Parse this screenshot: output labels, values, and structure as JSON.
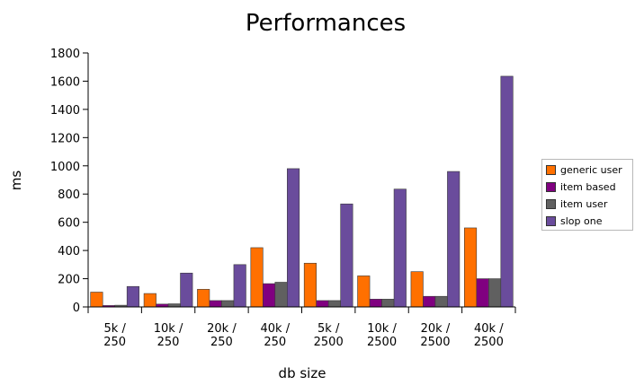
{
  "chart_data": {
    "type": "bar",
    "title": "Performances",
    "xlabel": "db size",
    "ylabel": "ms",
    "ylim": [
      0,
      1800
    ],
    "yticks": [
      0,
      200,
      400,
      600,
      800,
      1000,
      1200,
      1400,
      1600,
      1800
    ],
    "grid": false,
    "legend_position": "right",
    "categories": [
      [
        "5k /",
        "250"
      ],
      [
        "10k /",
        "250"
      ],
      [
        "20k /",
        "250"
      ],
      [
        "40k /",
        "250"
      ],
      [
        "5k /",
        "2500"
      ],
      [
        "10k /",
        "2500"
      ],
      [
        "20k /",
        "2500"
      ],
      [
        "40k /",
        "2500"
      ]
    ],
    "series": [
      {
        "name": "generic user",
        "color": "#ff7000",
        "values": [
          105,
          95,
          125,
          420,
          310,
          220,
          250,
          560
        ]
      },
      {
        "name": "item based",
        "color": "#800080",
        "values": [
          10,
          20,
          45,
          165,
          45,
          55,
          75,
          200
        ]
      },
      {
        "name": "item user",
        "color": "#606060",
        "values": [
          12,
          22,
          45,
          175,
          45,
          55,
          75,
          200
        ]
      },
      {
        "name": "slop one",
        "color": "#6a4c9c",
        "values": [
          145,
          240,
          300,
          980,
          730,
          835,
          960,
          1635
        ]
      }
    ]
  }
}
